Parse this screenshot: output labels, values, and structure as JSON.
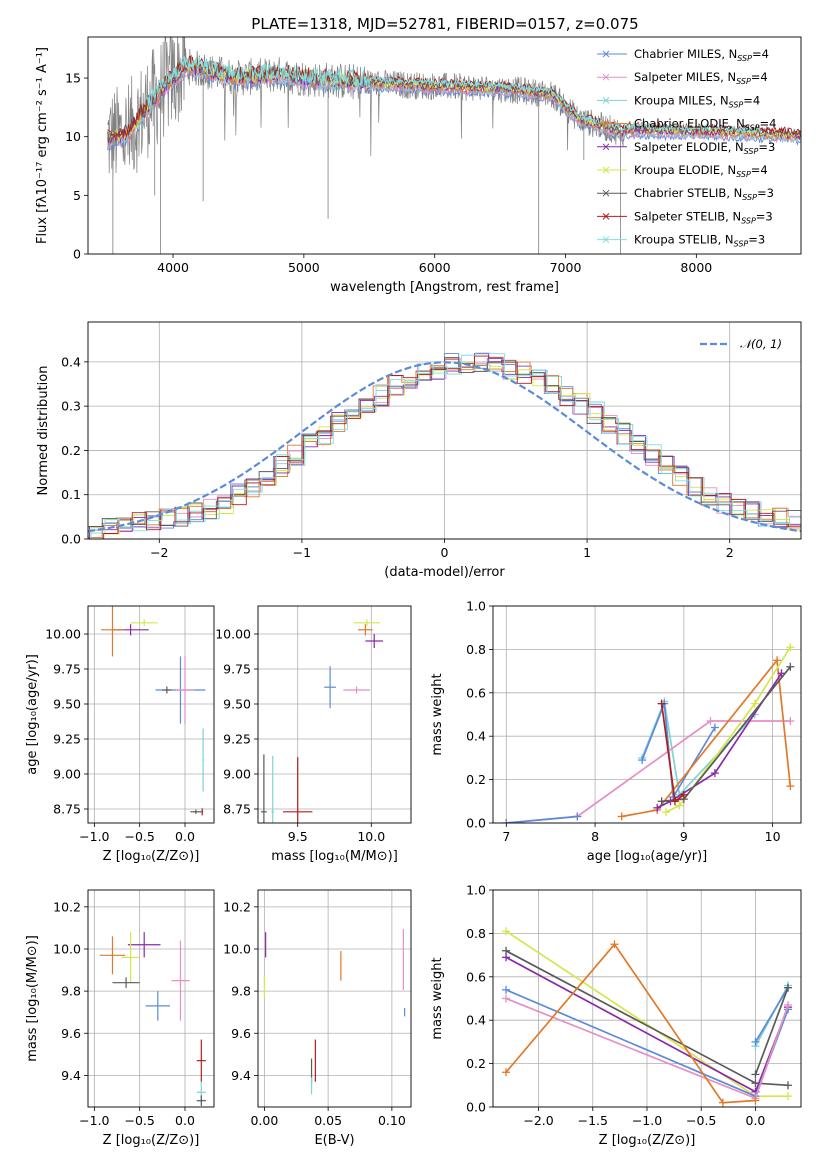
{
  "title": "PLATE=1318, MJD=52781, FIBERID=0157, z=0.075",
  "colors": {
    "Chabrier MILES": "#5b8bd9",
    "Salpeter MILES": "#e58fc4",
    "Kroupa MILES": "#7fd3d3",
    "Chabrier ELODIE": "#e07a2a",
    "Salpeter ELODIE": "#8a2aa8",
    "Kroupa ELODIE": "#d6e64a",
    "Chabrier STELIB": "#5a5a5a",
    "Salpeter STELIB": "#b01e1e",
    "Kroupa STELIB": "#7fe0e0",
    "data": "#808080",
    "gauss": "#5b8bd9"
  },
  "chart_data": [
    {
      "id": "spectrum",
      "type": "line",
      "title": "PLATE=1318, MJD=52781, FIBERID=0157, z=0.075",
      "xlabel": "wavelength [Angstrom, rest frame]",
      "ylabel": "Flux [fλ10⁻¹⁷ erg cm⁻² s⁻¹ A⁻¹]",
      "xlim": [
        3350,
        8800
      ],
      "ylim": [
        0,
        18.5
      ],
      "xticks": [
        4000,
        5000,
        6000,
        7000,
        8000
      ],
      "yticks": [
        0,
        5,
        10,
        15
      ],
      "legend_position": "top-right",
      "legend": [
        {
          "label": "Chabrier MILES, N",
          "sub": "SSP",
          "tail": "=4",
          "color": "#5b8bd9"
        },
        {
          "label": "Salpeter MILES, N",
          "sub": "SSP",
          "tail": "=4",
          "color": "#e58fc4"
        },
        {
          "label": "Kroupa MILES, N",
          "sub": "SSP",
          "tail": "=4",
          "color": "#7fd3d3"
        },
        {
          "label": "Chabrier ELODIE, N",
          "sub": "SSP",
          "tail": "=4",
          "color": "#e07a2a"
        },
        {
          "label": "Salpeter ELODIE, N",
          "sub": "SSP",
          "tail": "=3",
          "color": "#8a2aa8"
        },
        {
          "label": "Kroupa ELODIE, N",
          "sub": "SSP",
          "tail": "=4",
          "color": "#d6e64a"
        },
        {
          "label": "Chabrier STELIB, N",
          "sub": "SSP",
          "tail": "=3",
          "color": "#5a5a5a"
        },
        {
          "label": "Salpeter STELIB, N",
          "sub": "SSP",
          "tail": "=3",
          "color": "#b01e1e"
        },
        {
          "label": "Kroupa STELIB, N",
          "sub": "SSP",
          "tail": "=3",
          "color": "#7fe0e0"
        }
      ],
      "continuum": {
        "x": [
          3500,
          3650,
          3800,
          3950,
          4100,
          4300,
          4500,
          4800,
          5000,
          5200,
          5500,
          5800,
          6000,
          6300,
          6600,
          6900,
          7100,
          7300,
          7450
        ],
        "y": [
          9.8,
          10.2,
          12.5,
          14.5,
          16.0,
          15.5,
          15.0,
          15.3,
          15.0,
          14.8,
          14.6,
          14.4,
          14.3,
          14.2,
          14.0,
          13.6,
          11.5,
          10.8,
          10.3
        ]
      },
      "continuum_red": {
        "x": [
          7450,
          7800,
          8200,
          8600,
          8800
        ],
        "y": [
          10.6,
          10.5,
          10.4,
          10.2,
          10.1
        ]
      }
    },
    {
      "id": "histogram",
      "type": "bar",
      "xlabel": "(data-model)/error",
      "ylabel": "Normed distribution",
      "xlim": [
        -2.5,
        2.5
      ],
      "ylim": [
        0,
        0.49
      ],
      "xticks": [
        -2,
        -1,
        0,
        1,
        2
      ],
      "yticks": [
        0.0,
        0.1,
        0.2,
        0.3,
        0.4
      ],
      "grid": true,
      "bin_start": -2.5,
      "bin_width": 0.1,
      "base": [
        0.018,
        0.025,
        0.032,
        0.035,
        0.04,
        0.045,
        0.052,
        0.06,
        0.07,
        0.082,
        0.1,
        0.118,
        0.14,
        0.165,
        0.19,
        0.215,
        0.238,
        0.262,
        0.285,
        0.305,
        0.325,
        0.345,
        0.362,
        0.375,
        0.385,
        0.395,
        0.4,
        0.4,
        0.395,
        0.385,
        0.375,
        0.362,
        0.345,
        0.325,
        0.305,
        0.285,
        0.262,
        0.238,
        0.215,
        0.19,
        0.165,
        0.14,
        0.118,
        0.1,
        0.082,
        0.07,
        0.06,
        0.052,
        0.045,
        0.04
      ],
      "gauss_label": "𝒩(0, 1)"
    },
    {
      "id": "age-vs-z",
      "type": "scatter",
      "xlabel": "Z [log₁₀(Z/Z⊙)]",
      "ylabel": "age  [log₁₀(age/yr)]",
      "xlim": [
        -1.07,
        0.32
      ],
      "ylim": [
        8.65,
        10.2
      ],
      "xticks": [
        -1.0,
        -0.5,
        0.0
      ],
      "yticks": [
        8.75,
        9.0,
        9.25,
        9.5,
        9.75,
        10.0
      ],
      "points": [
        {
          "x": -0.6,
          "y": 10.03,
          "dx": 0.4,
          "dy": 0.08,
          "color": "#8a2aa8"
        },
        {
          "x": -0.45,
          "y": 10.08,
          "dx": 0.3,
          "dy": 0.05,
          "color": "#d6e64a"
        },
        {
          "x": -0.8,
          "y": 10.03,
          "dx": 0.25,
          "dy": 0.38,
          "color": "#e07a2a"
        },
        {
          "x": -0.05,
          "y": 9.6,
          "dx": 0.55,
          "dy": 0.48,
          "color": "#5b8bd9"
        },
        {
          "x": -0.2,
          "y": 9.6,
          "dx": 0.1,
          "dy": 0.05,
          "color": "#5a5a5a"
        },
        {
          "x": 0.0,
          "y": 9.6,
          "dx": 0.2,
          "dy": 0.48,
          "color": "#e58fc4"
        },
        {
          "x": 0.2,
          "y": 9.1,
          "dx": 0.02,
          "dy": 0.45,
          "color": "#7fd3d3"
        },
        {
          "x": 0.19,
          "y": 8.73,
          "dx": 0.02,
          "dy": 0.05,
          "color": "#b01e1e"
        },
        {
          "x": 0.12,
          "y": 8.73,
          "dx": 0.12,
          "dy": 0.03,
          "color": "#5a5a5a"
        }
      ]
    },
    {
      "id": "age-vs-mass",
      "type": "scatter",
      "xlabel": "mass [log₁₀(M/M⊙)]",
      "ylabel": "",
      "xlim": [
        9.23,
        10.27
      ],
      "ylim": [
        8.65,
        10.2
      ],
      "xticks": [
        9.5,
        10.0
      ],
      "yticks": [
        8.75,
        9.0,
        9.25,
        9.5,
        9.75,
        10.0
      ],
      "points": [
        {
          "x": 9.97,
          "y": 10.08,
          "dx": 0.18,
          "dy": 0.05,
          "color": "#d6e64a"
        },
        {
          "x": 9.96,
          "y": 10.03,
          "dx": 0.1,
          "dy": 0.08,
          "color": "#e07a2a"
        },
        {
          "x": 10.02,
          "y": 9.95,
          "dx": 0.12,
          "dy": 0.1,
          "color": "#8a2aa8"
        },
        {
          "x": 9.72,
          "y": 9.62,
          "dx": 0.08,
          "dy": 0.3,
          "color": "#5b8bd9"
        },
        {
          "x": 9.9,
          "y": 9.6,
          "dx": 0.18,
          "dy": 0.05,
          "color": "#e58fc4"
        },
        {
          "x": 9.27,
          "y": 8.73,
          "dx": 0.04,
          "dy": 0.82,
          "color": "#5a5a5a"
        },
        {
          "x": 9.33,
          "y": 8.73,
          "dx": 0.02,
          "dy": 0.8,
          "color": "#7fd3d3"
        },
        {
          "x": 9.5,
          "y": 8.73,
          "dx": 0.2,
          "dy": 0.78,
          "color": "#b01e1e"
        }
      ]
    },
    {
      "id": "weight-vs-age",
      "type": "line",
      "xlabel": "age  [log₁₀(age/yr)]",
      "ylabel": "mass weight",
      "xlim": [
        6.85,
        10.32
      ],
      "ylim": [
        0,
        1.0
      ],
      "xticks": [
        7,
        8,
        9,
        10
      ],
      "yticks": [
        0.0,
        0.2,
        0.4,
        0.6,
        0.8,
        1.0
      ],
      "series": [
        {
          "color": "#7fd3d3",
          "x": [
            8.53,
            8.78,
            8.95,
            9.8
          ],
          "y": [
            0.3,
            0.56,
            0.13,
            0.5
          ]
        },
        {
          "color": "#5b8bd9",
          "x": [
            8.53,
            8.78,
            8.88,
            9.35
          ],
          "y": [
            0.29,
            0.55,
            0.12,
            0.44
          ]
        },
        {
          "color": "#e58fc4",
          "x": [
            7.0,
            7.8,
            9.3,
            10.2
          ],
          "y": [
            0.0,
            0.03,
            0.47,
            0.47
          ]
        },
        {
          "color": "#5b8bd9",
          "x": [
            7.0,
            7.8
          ],
          "y": [
            0.0,
            0.03
          ]
        },
        {
          "color": "#e07a2a",
          "x": [
            8.3,
            8.7,
            10.05,
            10.2
          ],
          "y": [
            0.03,
            0.06,
            0.75,
            0.17
          ]
        },
        {
          "color": "#8a2aa8",
          "x": [
            8.7,
            8.85,
            9.35,
            10.1
          ],
          "y": [
            0.07,
            0.1,
            0.23,
            0.69
          ]
        },
        {
          "color": "#d6e64a",
          "x": [
            8.8,
            8.95,
            9.8,
            10.2
          ],
          "y": [
            0.05,
            0.08,
            0.55,
            0.81
          ]
        },
        {
          "color": "#5a5a5a",
          "x": [
            8.75,
            9.0,
            10.2
          ],
          "y": [
            0.1,
            0.11,
            0.72
          ]
        },
        {
          "color": "#b01e1e",
          "x": [
            8.75,
            8.9,
            9.0
          ],
          "y": [
            0.55,
            0.1,
            0.13
          ]
        }
      ]
    },
    {
      "id": "mass-vs-z",
      "type": "scatter",
      "xlabel": "Z [log₁₀(Z/Z⊙)]",
      "ylabel": "mass [log₁₀(M/M⊙)]",
      "xlim": [
        -1.07,
        0.32
      ],
      "ylim": [
        9.25,
        10.28
      ],
      "xticks": [
        -1.0,
        -0.5,
        0.0
      ],
      "yticks": [
        9.4,
        9.6,
        9.8,
        10.0,
        10.2
      ],
      "points": [
        {
          "x": -0.45,
          "y": 10.02,
          "dx": 0.36,
          "dy": 0.12,
          "color": "#8a2aa8"
        },
        {
          "x": -0.8,
          "y": 9.97,
          "dx": 0.28,
          "dy": 0.18,
          "color": "#e07a2a"
        },
        {
          "x": -0.6,
          "y": 9.96,
          "dx": 0.2,
          "dy": 0.24,
          "color": "#d6e64a"
        },
        {
          "x": -0.65,
          "y": 9.84,
          "dx": 0.3,
          "dy": 0.05,
          "color": "#5a5a5a"
        },
        {
          "x": -0.05,
          "y": 9.85,
          "dx": 0.2,
          "dy": 0.38,
          "color": "#e58fc4"
        },
        {
          "x": -0.3,
          "y": 9.73,
          "dx": 0.27,
          "dy": 0.14,
          "color": "#5b8bd9"
        },
        {
          "x": 0.18,
          "y": 9.47,
          "dx": 0.1,
          "dy": 0.2,
          "color": "#b01e1e"
        },
        {
          "x": 0.18,
          "y": 9.32,
          "dx": 0.1,
          "dy": 0.1,
          "color": "#7fd3d3"
        },
        {
          "x": 0.18,
          "y": 9.28,
          "dx": 0.1,
          "dy": 0.05,
          "color": "#5a5a5a"
        }
      ]
    },
    {
      "id": "mass-vs-ebv",
      "type": "scatter",
      "xlabel": "E(B-V)",
      "ylabel": "",
      "xlim": [
        -0.005,
        0.115
      ],
      "ylim": [
        9.25,
        10.28
      ],
      "xticks": [
        0.0,
        0.05,
        0.1
      ],
      "yticks": [
        9.4,
        9.6,
        9.8,
        10.0,
        10.2
      ],
      "points": [
        {
          "x": 0.001,
          "y": 10.02,
          "dx": 0,
          "dy": 0.12,
          "color": "#8a2aa8"
        },
        {
          "x": 0.0,
          "y": 9.82,
          "dx": 0,
          "dy": 0.1,
          "color": "#d6e64a"
        },
        {
          "x": 0.06,
          "y": 9.92,
          "dx": 0,
          "dy": 0.14,
          "color": "#e07a2a"
        },
        {
          "x": 0.109,
          "y": 9.95,
          "dx": 0,
          "dy": 0.29,
          "color": "#e58fc4"
        },
        {
          "x": 0.11,
          "y": 9.7,
          "dx": 0,
          "dy": 0.04,
          "color": "#5b8bd9"
        },
        {
          "x": 0.04,
          "y": 9.47,
          "dx": 0,
          "dy": 0.2,
          "color": "#b01e1e"
        },
        {
          "x": 0.037,
          "y": 9.42,
          "dx": 0,
          "dy": 0.12,
          "color": "#5a5a5a"
        },
        {
          "x": 0.037,
          "y": 9.35,
          "dx": 0,
          "dy": 0.08,
          "color": "#7fd3d3"
        }
      ]
    },
    {
      "id": "weight-vs-z",
      "type": "line",
      "xlabel": "Z [log₁₀(Z/Z⊙)]",
      "ylabel": "mass weight",
      "xlim": [
        -2.42,
        0.42
      ],
      "ylim": [
        0,
        1.0
      ],
      "xticks": [
        -2.0,
        -1.5,
        -1.0,
        -0.5,
        0.0
      ],
      "yticks": [
        0.0,
        0.2,
        0.4,
        0.6,
        0.8,
        1.0
      ],
      "series": [
        {
          "color": "#d6e64a",
          "x": [
            -2.3,
            0.0,
            0.3
          ],
          "y": [
            0.81,
            0.05,
            0.05
          ]
        },
        {
          "color": "#5a5a5a",
          "x": [
            -2.3,
            0.0,
            0.3
          ],
          "y": [
            0.72,
            0.11,
            0.1
          ]
        },
        {
          "color": "#8a2aa8",
          "x": [
            -2.3,
            0.0,
            0.3
          ],
          "y": [
            0.69,
            0.07,
            0.46
          ]
        },
        {
          "color": "#5b8bd9",
          "x": [
            -2.3,
            0.0,
            0.3
          ],
          "y": [
            0.54,
            0.05,
            0.45
          ]
        },
        {
          "color": "#e58fc4",
          "x": [
            -2.3,
            0.0,
            0.3
          ],
          "y": [
            0.5,
            0.04,
            0.47
          ]
        },
        {
          "color": "#e07a2a",
          "x": [
            -2.3,
            -1.3,
            -0.3,
            0.0
          ],
          "y": [
            0.16,
            0.75,
            0.02,
            0.03
          ]
        },
        {
          "color": "#7fd3d3",
          "x": [
            0.0,
            0.3
          ],
          "y": [
            0.28,
            0.56
          ]
        },
        {
          "color": "#5b8bd9",
          "x": [
            0.0,
            0.3
          ],
          "y": [
            0.3,
            0.55
          ]
        },
        {
          "color": "#5a5a5a",
          "x": [
            0.0,
            0.3
          ],
          "y": [
            0.15,
            0.55
          ]
        }
      ]
    }
  ]
}
